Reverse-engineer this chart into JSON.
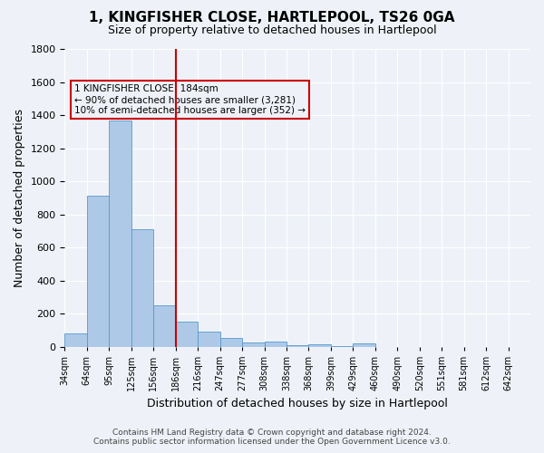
{
  "title": "1, KINGFISHER CLOSE, HARTLEPOOL, TS26 0GA",
  "subtitle": "Size of property relative to detached houses in Hartlepool",
  "xlabel": "Distribution of detached houses by size in Hartlepool",
  "ylabel": "Number of detached properties",
  "footer_line1": "Contains HM Land Registry data © Crown copyright and database right 2024.",
  "footer_line2": "Contains public sector information licensed under the Open Government Licence v3.0.",
  "bin_labels": [
    "34sqm",
    "64sqm",
    "95sqm",
    "125sqm",
    "156sqm",
    "186sqm",
    "216sqm",
    "247sqm",
    "277sqm",
    "308sqm",
    "338sqm",
    "368sqm",
    "399sqm",
    "429sqm",
    "460sqm",
    "490sqm",
    "520sqm",
    "551sqm",
    "581sqm",
    "612sqm",
    "642sqm"
  ],
  "bar_values": [
    80,
    910,
    1370,
    710,
    250,
    150,
    90,
    55,
    25,
    30,
    10,
    15,
    5,
    20,
    0,
    0,
    0,
    0,
    0,
    0,
    0
  ],
  "n_bins": 21,
  "red_line_bin": 5,
  "annotation_text": "1 KINGFISHER CLOSE: 184sqm\n← 90% of detached houses are smaller (3,281)\n10% of semi-detached houses are larger (352) →",
  "bar_color": "#aec9e8",
  "bar_edge_color": "#5599cc",
  "red_line_color": "#cc0000",
  "annotation_box_edge": "#cc0000",
  "background_color": "#eef2f8",
  "ylim": [
    0,
    1800
  ],
  "yticks": [
    0,
    200,
    400,
    600,
    800,
    1000,
    1200,
    1400,
    1600,
    1800
  ],
  "title_fontsize": 11,
  "subtitle_fontsize": 9,
  "ylabel_fontsize": 9,
  "xlabel_fontsize": 9,
  "tick_fontsize": 8,
  "xtick_fontsize": 7,
  "footer_fontsize": 6.5
}
